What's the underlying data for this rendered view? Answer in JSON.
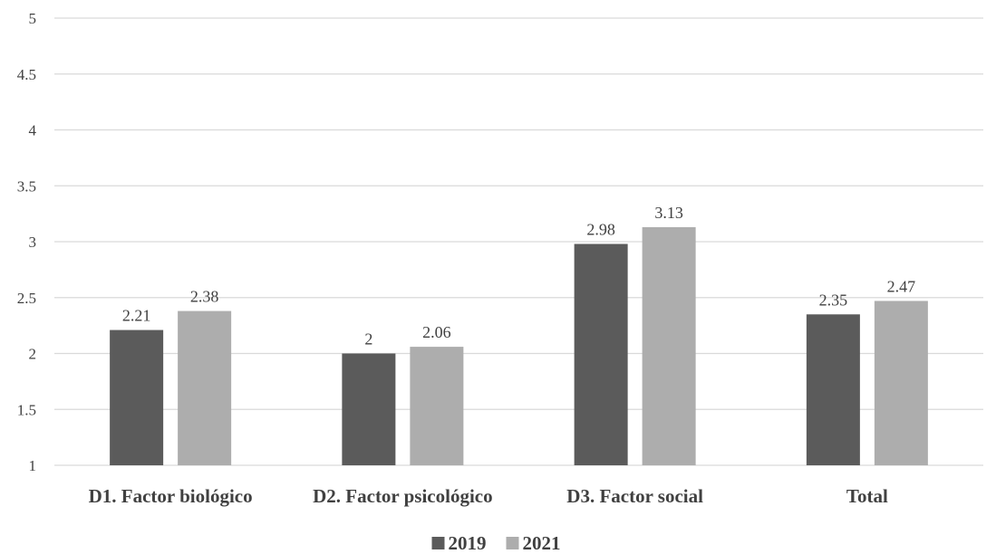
{
  "chart_data": {
    "type": "bar",
    "categories": [
      "D1. Factor biológico",
      "D2. Factor psicológico",
      "D3. Factor social",
      "Total"
    ],
    "series": [
      {
        "name": "2019",
        "values": [
          2.21,
          2,
          2.98,
          2.35
        ],
        "data_labels": [
          "2.21",
          "2",
          "2.98",
          "2.35"
        ],
        "color": "#5b5b5b"
      },
      {
        "name": "2021",
        "values": [
          2.38,
          2.06,
          3.13,
          2.47
        ],
        "data_labels": [
          "2.38",
          "2.06",
          "3.13",
          "2.47"
        ],
        "color": "#adadad"
      }
    ],
    "ylim": [
      1,
      5
    ],
    "yticks": [
      "1",
      "1.5",
      "2",
      "2.5",
      "3",
      "3.5",
      "4",
      "4.5",
      "5"
    ],
    "grid": true,
    "legend_position": "bottom"
  }
}
